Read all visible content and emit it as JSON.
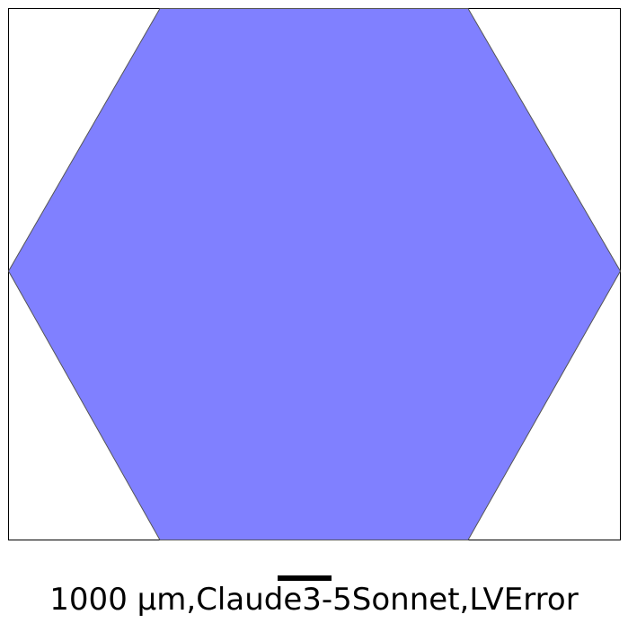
{
  "figure": {
    "shape": "hexagon",
    "fill_color": "#8080ff",
    "edge_color": "#555555",
    "frame_color": "#000000",
    "background_color": "#ffffff"
  },
  "scale_bar": {
    "color": "#000000",
    "label": "1000 µm,Claude3-5Sonnet,LVError"
  }
}
